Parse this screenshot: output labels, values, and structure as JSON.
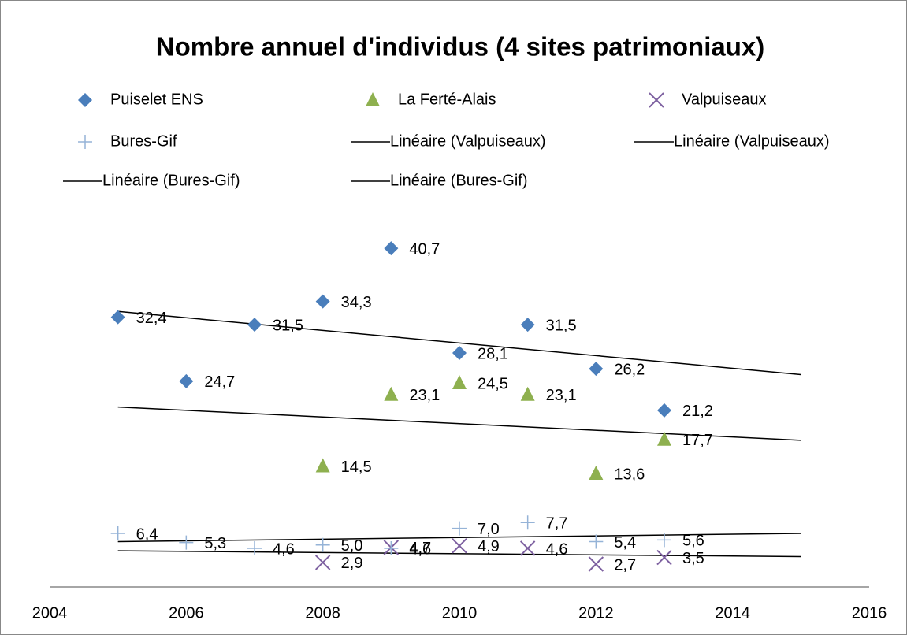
{
  "chart_data": {
    "type": "scatter",
    "title": "Nombre annuel d'individus (4 sites patrimoniaux)",
    "xlim": [
      2004,
      2016
    ],
    "xticks": [
      2004,
      2006,
      2008,
      2010,
      2012,
      2014,
      2016
    ],
    "ylim": [
      0,
      45
    ],
    "grid": false,
    "series": [
      {
        "name": "Puiselet ENS",
        "color": "#4a7ebb",
        "marker": "diamond",
        "x": [
          2005,
          2006,
          2007,
          2008,
          2009,
          2010,
          2011,
          2012,
          2013
        ],
        "values": [
          32.4,
          24.7,
          31.5,
          34.3,
          40.7,
          28.1,
          31.5,
          26.2,
          21.2
        ],
        "value_labels": [
          "32,4",
          "24,7",
          "31,5",
          "34,3",
          "40,7",
          "28,1",
          "31,5",
          "26,2",
          "21,2"
        ]
      },
      {
        "name": "La Ferté-Alais",
        "color": "#8eb04f",
        "marker": "triangle",
        "x": [
          2008,
          2009,
          2010,
          2011,
          2012,
          2013
        ],
        "values": [
          14.5,
          23.1,
          24.5,
          23.1,
          13.6,
          17.7
        ],
        "value_labels": [
          "14,5",
          "23,1",
          "24,5",
          "23,1",
          "13,6",
          "17,7"
        ]
      },
      {
        "name": "Valpuiseaux",
        "color": "#7d60a0",
        "marker": "x",
        "x": [
          2008,
          2009,
          2010,
          2011,
          2012,
          2013
        ],
        "values": [
          2.9,
          4.7,
          4.9,
          4.6,
          2.7,
          3.5
        ],
        "value_labels": [
          "2,9",
          "4,7",
          "4,9",
          "4,6",
          "2,7",
          "3,5"
        ]
      },
      {
        "name": "Bures-Gif",
        "color": "#95b3d7",
        "marker": "plus",
        "x": [
          2005,
          2006,
          2007,
          2008,
          2009,
          2010,
          2011,
          2012,
          2013
        ],
        "values": [
          6.4,
          5.3,
          4.6,
          5.0,
          4.6,
          7.0,
          7.7,
          5.4,
          5.6
        ],
        "value_labels": [
          "6,4",
          "5,3",
          "4,6",
          "5,0",
          "4,6",
          "7,0",
          "7,7",
          "5,4",
          "5,6"
        ]
      },
      {
        "name": "Linéaire (Valpuiseaux)",
        "color": "#000000",
        "marker": "line",
        "x": [
          2005,
          2015
        ],
        "values": [
          33.1,
          25.5
        ]
      },
      {
        "name": "Linéaire (Valpuiseaux)",
        "color": "#000000",
        "marker": "line",
        "x": [
          2005,
          2015
        ],
        "values": [
          21.6,
          17.6
        ]
      },
      {
        "name": "Linéaire (Bures-Gif)",
        "color": "#000000",
        "marker": "line",
        "x": [
          2005,
          2015
        ],
        "values": [
          5.4,
          6.4
        ]
      },
      {
        "name": "Linéaire (Bures-Gif)",
        "color": "#000000",
        "marker": "line",
        "x": [
          2005,
          2015
        ],
        "values": [
          4.3,
          3.6
        ]
      }
    ]
  }
}
